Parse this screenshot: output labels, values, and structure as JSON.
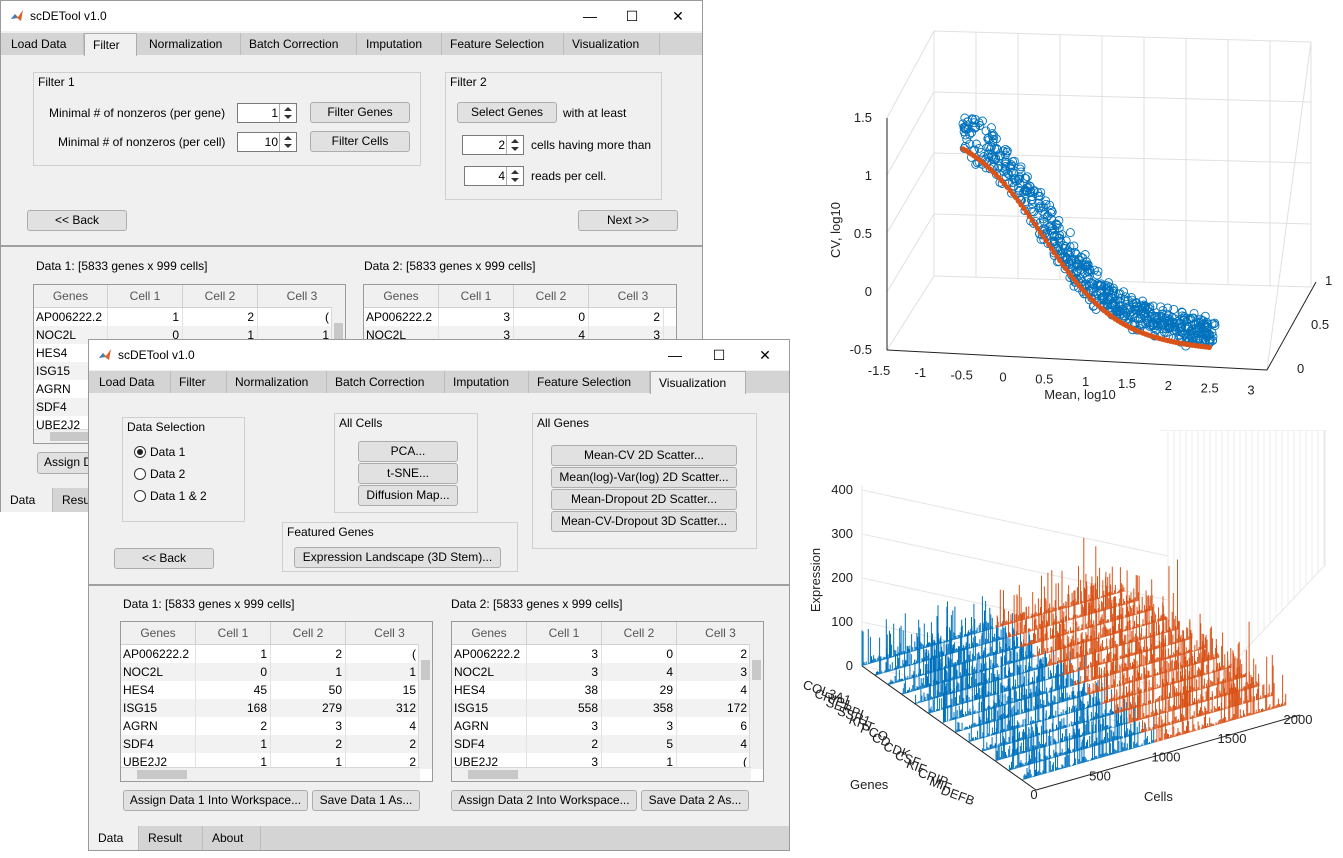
{
  "app_title": "scDETool v1.0",
  "tabs": [
    "Load Data",
    "Filter",
    "Normalization",
    "Batch Correction",
    "Imputation",
    "Feature Selection",
    "Visualization"
  ],
  "window_controls": {
    "minimize": "—",
    "maximize": "☐",
    "close": "✕"
  },
  "filter": {
    "filter1_title": "Filter 1",
    "min_gene_label": "Minimal # of nonzeros (per gene)",
    "min_gene_value": "1",
    "filter_genes_btn": "Filter Genes",
    "min_cell_label": "Minimal # of nonzeros (per cell)",
    "min_cell_value": "10",
    "filter_cells_btn": "Filter Cells",
    "filter2_title": "Filter 2",
    "select_genes_btn": "Select Genes",
    "with_at_least": "with at least",
    "cells_value": "2",
    "cells_label": "cells having more than",
    "reads_value": "4",
    "reads_label": "reads per cell.",
    "back_btn": "<< Back",
    "next_btn": "Next >>"
  },
  "visualization": {
    "data_selection_title": "Data Selection",
    "radios": [
      "Data 1",
      "Data 2",
      "Data 1 & 2"
    ],
    "all_cells_title": "All Cells",
    "all_cells_buttons": [
      "PCA...",
      "t-SNE...",
      "Diffusion Map..."
    ],
    "all_genes_title": "All Genes",
    "all_genes_buttons": [
      "Mean-CV 2D Scatter...",
      "Mean(log)-Var(log) 2D Scatter...",
      "Mean-Dropout 2D Scatter...",
      "Mean-CV-Dropout 3D Scatter..."
    ],
    "featured_genes_title": "Featured Genes",
    "featured_btn": "Expression Landscape (3D Stem)...",
    "back_btn": "<< Back"
  },
  "data1": {
    "title": "Data 1: [5833 genes x 999 cells]",
    "columns": [
      "Genes",
      "Cell 1",
      "Cell 2",
      "Cell 3"
    ],
    "rows": [
      [
        "AP006222.2",
        "1",
        "2",
        "("
      ],
      [
        "NOC2L",
        "0",
        "1",
        "1"
      ],
      [
        "HES4",
        "45",
        "50",
        "15"
      ],
      [
        "ISG15",
        "168",
        "279",
        "312"
      ],
      [
        "AGRN",
        "2",
        "3",
        "4"
      ],
      [
        "SDF4",
        "1",
        "2",
        "2"
      ],
      [
        "UBE2J2",
        "1",
        "1",
        "2"
      ]
    ],
    "assign_btn": "Assign Data 1 Into Workspace...",
    "save_btn": "Save Data 1 As..."
  },
  "data2": {
    "title": "Data 2: [5833 genes x 999 cells]",
    "columns": [
      "Genes",
      "Cell 1",
      "Cell 2",
      "Cell 3"
    ],
    "rows": [
      [
        "AP006222.2",
        "3",
        "0",
        "2"
      ],
      [
        "NOC2L",
        "3",
        "4",
        "3"
      ],
      [
        "HES4",
        "38",
        "29",
        "4"
      ],
      [
        "ISG15",
        "558",
        "358",
        "172"
      ],
      [
        "AGRN",
        "3",
        "3",
        "6"
      ],
      [
        "SDF4",
        "2",
        "5",
        "4"
      ],
      [
        "UBE2J2",
        "3",
        "1",
        "("
      ]
    ],
    "assign_btn": "Assign Data 2 Into Workspace...",
    "save_btn": "Save Data 2 As..."
  },
  "back_window": {
    "genes_visible": [
      "AP006222.2",
      "NOC2L",
      "HES4",
      "ISG15",
      "AGRN",
      "SDF4",
      "UBE2J2"
    ],
    "data1_row_values": [
      [
        "1",
        "2",
        "("
      ],
      [
        "0",
        "1",
        "1"
      ]
    ],
    "data2_row_values": [
      [
        "3",
        "0",
        "2"
      ],
      [
        "3",
        "4",
        "3"
      ]
    ],
    "assign_partial": "Assign D"
  },
  "bottom_tabs": [
    "Data",
    "Result",
    "About"
  ],
  "bottom_tabs_back": [
    "Data",
    "Resu"
  ],
  "colors": {
    "blue": "#0072bd",
    "orange": "#d95319"
  },
  "chart_data": [
    {
      "type": "scatter",
      "title": "",
      "xlabel": "Mean, log10",
      "ylabel": "CV, log10",
      "x_ticks": [
        "-1.5",
        "-1",
        "-0.5",
        "0",
        "0.5",
        "1",
        "1.5",
        "2",
        "2.5",
        "3"
      ],
      "y_ticks": [
        "-0.5",
        "0",
        "0.5",
        "1",
        "1.5"
      ],
      "z_ticks": [
        "0",
        "0.5",
        "1"
      ],
      "xlim": [
        -1.5,
        3
      ],
      "ylim": [
        -0.5,
        1.5
      ],
      "zlim": [
        0,
        1
      ],
      "series": [
        {
          "marker": "open-circle",
          "color": "#0072bd",
          "points": [
            [
              -0.6,
              1.7
            ],
            [
              -0.4,
              1.5
            ],
            [
              -0.2,
              1.3
            ],
            [
              0,
              1.05
            ],
            [
              0.2,
              0.75
            ],
            [
              0.4,
              0.45
            ],
            [
              0.6,
              0.25
            ],
            [
              0.8,
              0.1
            ],
            [
              1.0,
              0.0
            ],
            [
              1.2,
              -0.1
            ],
            [
              1.5,
              -0.2
            ],
            [
              2.0,
              -0.3
            ],
            [
              2.5,
              -0.35
            ]
          ]
        },
        {
          "marker": "dot",
          "color": "#d95319",
          "points": [
            [
              -0.6,
              1.4
            ],
            [
              -0.3,
              1.1
            ],
            [
              0,
              0.7
            ],
            [
              0.3,
              0.35
            ],
            [
              0.6,
              0.12
            ],
            [
              1.0,
              -0.05
            ],
            [
              1.5,
              -0.18
            ],
            [
              2.0,
              -0.26
            ],
            [
              2.4,
              -0.3
            ]
          ]
        }
      ]
    },
    {
      "type": "stem3",
      "title": "",
      "xlabel": "Genes",
      "ylabel": "Cells",
      "zlabel": "Expression",
      "z_ticks": [
        "0",
        "100",
        "200",
        "300",
        "400"
      ],
      "y_ticks": [
        "0",
        "500",
        "1000",
        "1500",
        "2000"
      ],
      "zlim": [
        0,
        400
      ],
      "ylim": [
        0,
        2000
      ],
      "gene_labels": [
        "COL3A1",
        "CRIP1",
        "SERPI",
        "SSR1",
        "KRT",
        "PCO",
        "CD",
        "CDK",
        "CSF",
        "KIF",
        "CRIP",
        "MIF",
        "DEFB"
      ],
      "series": [
        {
          "name": "Data 1",
          "color": "#0072bd",
          "cells": [
            0,
            999
          ]
        },
        {
          "name": "Data 2",
          "color": "#d95319",
          "cells": [
            1000,
            1998
          ]
        }
      ]
    }
  ]
}
